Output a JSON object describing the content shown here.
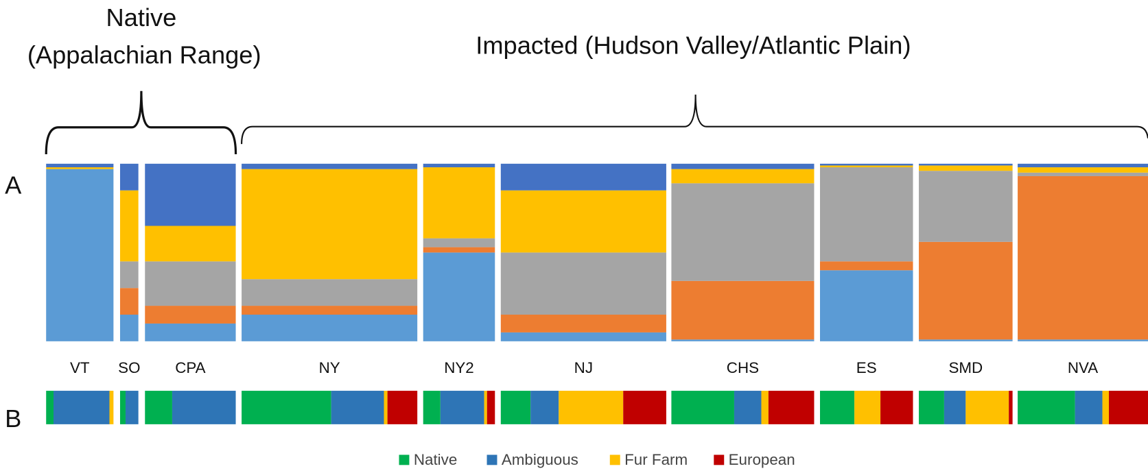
{
  "chart_data": {
    "type": "stacked_bar",
    "annotations": [
      "Native",
      "(Appalachian Range)",
      "Impacted (Hudson Valley/Atlantic Plain)"
    ],
    "panel_labels": [
      "A",
      "B"
    ],
    "categories": [
      "VT",
      "SO",
      "CPA",
      "NY",
      "NY2",
      "NJ",
      "CHS",
      "ES",
      "SMD",
      "NVA"
    ],
    "panels": [
      {
        "ylim": [
          0,
          100
        ],
        "orientation": "vertical",
        "series": [
          {
            "color": "#5b9bd5",
            "values": [
              97,
              15,
              10,
              15,
              50,
              5,
              1,
              40,
              1,
              1
            ]
          },
          {
            "color": "#ed7d31",
            "values": [
              0,
              15,
              10,
              5,
              3,
              10,
              33,
              5,
              55,
              92
            ]
          },
          {
            "color": "#a5a5a5",
            "values": [
              0,
              15,
              25,
              15,
              5,
              35,
              55,
              53,
              40,
              2
            ]
          },
          {
            "color": "#ffc000",
            "values": [
              1,
              40,
              20,
              62,
              40,
              35,
              8,
              1,
              3,
              3
            ]
          },
          {
            "color": "#4472c4",
            "values": [
              2,
              15,
              35,
              3,
              2,
              15,
              3,
              1,
              1,
              2
            ]
          }
        ]
      },
      {
        "ylim": [
          0,
          100
        ],
        "orientation": "horizontal",
        "series": [
          {
            "name": "Native",
            "color": "#00b050",
            "values": [
              11,
              30,
              30,
              51,
              24,
              18,
              44,
              37,
              27,
              44
            ]
          },
          {
            "name": "Ambiguous",
            "color": "#2e75b6",
            "values": [
              83,
              70,
              70,
              30,
              61,
              17,
              19,
              0,
              23,
              21
            ]
          },
          {
            "name": "Fur Farm",
            "color": "#ffc000",
            "values": [
              6,
              0,
              0,
              2,
              4,
              39,
              5,
              28,
              46,
              5
            ]
          },
          {
            "name": "European",
            "color": "#c00000",
            "values": [
              0,
              0,
              0,
              17,
              11,
              26,
              32,
              35,
              4,
              30
            ]
          }
        ]
      }
    ]
  }
}
